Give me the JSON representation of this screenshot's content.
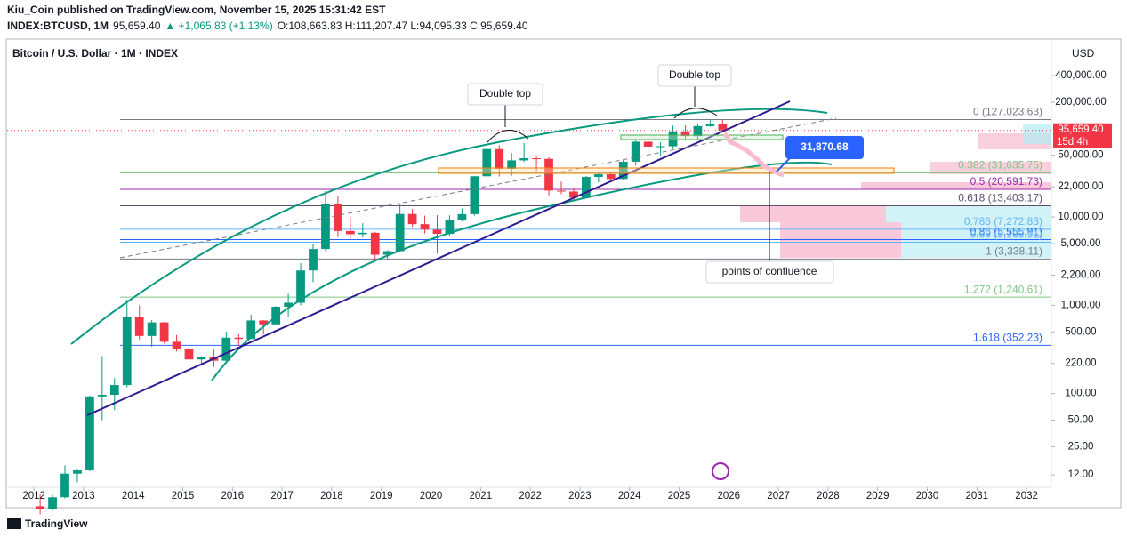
{
  "header": {
    "publisher": "Kiu_Coin published on TradingView.com, November 15, 2025 15:31:42 EST",
    "symbol": "INDEX:BTCUSD, 1M",
    "last": "95,659.40",
    "change": "▲ +1,065.83 (+1.13%)",
    "ohlc": "O:108,663.83 H:111,207.47 L:94,095.33 C:95,659.40"
  },
  "footer": {
    "brand": "TradingView"
  },
  "chart_data": {
    "type": "candlestick",
    "title": "Bitcoin / U.S. Dollar · 1M · INDEX",
    "currency": "USD",
    "log_scale": true,
    "up_color": "#089981",
    "down_color": "#f23645",
    "x": [
      2012,
      2012.25,
      2012.5,
      2012.75,
      2013,
      2013.25,
      2013.5,
      2013.75,
      2014,
      2014.25,
      2014.5,
      2014.75,
      2015,
      2015.25,
      2015.5,
      2015.75,
      2016,
      2016.25,
      2016.5,
      2016.75,
      2017,
      2017.25,
      2017.5,
      2017.75,
      2018,
      2018.25,
      2018.5,
      2018.75,
      2019,
      2019.25,
      2019.5,
      2019.75,
      2020,
      2020.25,
      2020.5,
      2020.75,
      2021,
      2021.25,
      2021.5,
      2021.75,
      2022,
      2022.25,
      2022.5,
      2022.75,
      2023,
      2023.25,
      2023.5,
      2023.75,
      2024,
      2024.25,
      2024.5,
      2024.75,
      2025,
      2025.25,
      2025.5,
      2025.75
    ],
    "open": [
      5.3,
      4.9,
      6.7,
      12.4,
      13.5,
      93,
      97,
      125,
      732,
      450,
      640,
      387,
      320,
      244,
      263,
      236,
      430,
      416,
      674,
      609,
      963,
      1070,
      2480,
      4340,
      13880,
      6940,
      6390,
      6630,
      3740,
      4100,
      10820,
      8300,
      7200,
      6440,
      9140,
      10780,
      28950,
      58800,
      35040,
      43800,
      46300,
      45540,
      19930,
      19430,
      16540,
      28480,
      30480,
      26960,
      42280,
      71300,
      62700,
      63300,
      93400,
      82500,
      107100,
      114050
    ],
    "high": [
      7.2,
      7.1,
      15.4,
      13.8,
      95,
      266,
      150,
      1163,
      1000,
      680,
      650,
      460,
      320,
      265,
      316,
      504,
      470,
      780,
      680,
      980,
      1350,
      3000,
      4980,
      19800,
      17250,
      9990,
      8500,
      6800,
      4200,
      13880,
      12350,
      10370,
      10500,
      10430,
      12480,
      29300,
      61800,
      64850,
      52900,
      69000,
      48200,
      47450,
      25200,
      21470,
      29190,
      31400,
      31800,
      45000,
      73800,
      72800,
      70000,
      108300,
      109350,
      111970,
      124500,
      126200
    ],
    "low": [
      4.3,
      4.7,
      6.5,
      9.9,
      13.2,
      50,
      65,
      118,
      410,
      340,
      370,
      300,
      166,
      213,
      200,
      235,
      350,
      415,
      470,
      600,
      750,
      1000,
      1830,
      4130,
      5900,
      5750,
      5880,
      3120,
      3350,
      4050,
      7700,
      6500,
      3850,
      6150,
      8900,
      10370,
      28130,
      28800,
      29280,
      42000,
      32950,
      17600,
      18150,
      15480,
      16500,
      24750,
      24900,
      26540,
      38500,
      56500,
      49000,
      58900,
      76600,
      74400,
      105250,
      94095
    ],
    "close": [
      4.9,
      6.7,
      12.4,
      13.5,
      93,
      97,
      125,
      732,
      450,
      640,
      387,
      320,
      244,
      263,
      236,
      430,
      416,
      674,
      609,
      963,
      1070,
      2480,
      4340,
      13880,
      6940,
      6390,
      6630,
      3740,
      4100,
      10820,
      8300,
      7200,
      6440,
      9140,
      10780,
      28950,
      58800,
      35040,
      43800,
      46300,
      45540,
      19930,
      19430,
      16540,
      28480,
      30480,
      26960,
      42280,
      71300,
      62700,
      63300,
      93400,
      82500,
      107100,
      114050,
      95659.4
    ],
    "xlim": [
      2011.46,
      2032.5
    ],
    "xticks": [
      2012,
      2013,
      2014,
      2015,
      2016,
      2017,
      2018,
      2019,
      2020,
      2021,
      2022,
      2023,
      2024,
      2025,
      2026,
      2027,
      2028,
      2029,
      2030,
      2031,
      2032
    ],
    "ylim": [
      8.7,
      1036000
    ],
    "yticks": [
      {
        "value": 12,
        "label": "12.00"
      },
      {
        "value": 25,
        "label": "25.00"
      },
      {
        "value": 50,
        "label": "50.00"
      },
      {
        "value": 100,
        "label": "100.00"
      },
      {
        "value": 220,
        "label": "220.00"
      },
      {
        "value": 500,
        "label": "500.00"
      },
      {
        "value": 1000,
        "label": "1,000.00"
      },
      {
        "value": 2200,
        "label": "2,200.00"
      },
      {
        "value": 5000,
        "label": "5,000.00"
      },
      {
        "value": 10000,
        "label": "10,000.00"
      },
      {
        "value": 22000,
        "label": "22,000.00"
      },
      {
        "value": 50000,
        "label": "50,000.00"
      },
      {
        "value": 200000,
        "label": "200,000.00"
      },
      {
        "value": 400000,
        "label": "400,000.00"
      }
    ],
    "last_price": {
      "value": 95659.4,
      "label": "95,659.40",
      "countdown": "15d 4h"
    },
    "fib_levels": [
      {
        "value": 127023.63,
        "label": "0 (127,023.63)",
        "color": "#787b86"
      },
      {
        "value": 31635.75,
        "label": "0.382 (31,635.75)",
        "color": "#81c784"
      },
      {
        "value": 20591.73,
        "label": "0.5 (20,591.73)",
        "color": "#9c27b0"
      },
      {
        "value": 13403.17,
        "label": "0.618 (13,403.17)",
        "color": "#5d4e6d"
      },
      {
        "value": 7272.83,
        "label": "0.786 (7,272.83)",
        "color": "#64b5f6"
      },
      {
        "value": 5555.91,
        "label": "0.86 (5,555.91)",
        "color": "#2962ff"
      },
      {
        "value": 5183.91,
        "label": "0.88 (5,183.91)",
        "color": "#64b5f6"
      },
      {
        "value": 3338.11,
        "label": "1 (3,338.11)",
        "color": "#787b86"
      },
      {
        "value": 1240.61,
        "label": "1.272 (1,240.61)",
        "color": "#81c784"
      },
      {
        "value": 352.23,
        "label": "1.618 (352.23)",
        "color": "#2962ff"
      }
    ],
    "annotations": {
      "double_top_1": "Double top",
      "double_top_2": "Double top",
      "confluence": "points of confluence",
      "target": "31,870.68"
    }
  }
}
